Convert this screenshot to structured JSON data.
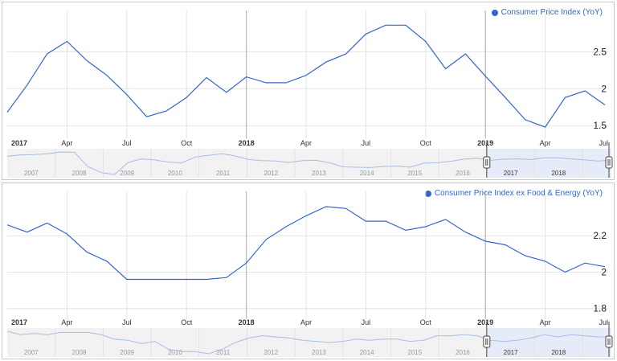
{
  "colors": {
    "line": "#3366cc",
    "grid": "#e3e3e3",
    "year_line": "#bbbbbb",
    "nav_bg": "#f2f2f2",
    "nav_selected": "#e6ecf7",
    "handle": "#444444"
  },
  "chart_data": [
    {
      "type": "line",
      "title": "",
      "series": [
        {
          "name": "Consumer Price Index (YoY)",
          "x": [
            "2017-01",
            "2017-02",
            "2017-03",
            "2017-04",
            "2017-05",
            "2017-06",
            "2017-07",
            "2017-08",
            "2017-09",
            "2017-10",
            "2017-11",
            "2017-12",
            "2018-01",
            "2018-02",
            "2018-03",
            "2018-04",
            "2018-05",
            "2018-06",
            "2018-07",
            "2018-08",
            "2018-09",
            "2018-10",
            "2018-11",
            "2018-12",
            "2019-01",
            "2019-02",
            "2019-03",
            "2019-04",
            "2019-05",
            "2019-06",
            "2019-07"
          ],
          "values": [
            1.68,
            2.05,
            2.47,
            2.64,
            2.38,
            2.18,
            1.92,
            1.62,
            1.7,
            1.88,
            2.15,
            1.95,
            2.16,
            2.08,
            2.08,
            2.18,
            2.36,
            2.47,
            2.74,
            2.86,
            2.86,
            2.64,
            2.27,
            2.47,
            2.17,
            1.88,
            1.58,
            1.48,
            1.88,
            1.97,
            1.78
          ]
        }
      ],
      "x_tick_labels": [
        "2017",
        "Apr",
        "Jul",
        "Oct",
        "2018",
        "Apr",
        "Jul",
        "Oct",
        "2019",
        "Apr",
        "Jul"
      ],
      "y_ticks": [
        "1.5",
        "2",
        "2.5"
      ],
      "ylim": [
        1.35,
        2.95
      ],
      "xlabel": "",
      "ylabel": "",
      "grid": true,
      "legend_position": "top-right",
      "navigator": {
        "years": [
          "2007",
          "2008",
          "2009",
          "2010",
          "2011",
          "2012",
          "2013",
          "2014",
          "2015",
          "2016",
          "2017",
          "2018"
        ],
        "values": [
          2.9,
          3.3,
          3.4,
          3.6,
          4.1,
          4.0,
          0.1,
          -1.6,
          -2.1,
          1.2,
          2.2,
          1.9,
          1.3,
          1.1,
          2.7,
          3.2,
          3.6,
          3.0,
          2.0,
          1.7,
          1.6,
          1.2,
          1.7,
          1.8,
          1.1,
          0.0,
          -0.1,
          -0.2,
          0.1,
          0.2,
          -0.1,
          1.0,
          1.1,
          1.5,
          2.1,
          2.4,
          1.8,
          2.1,
          2.2,
          2.0,
          2.5,
          2.5,
          2.2,
          1.9,
          1.6,
          1.8
        ],
        "selected_range": [
          "2017",
          "2019"
        ]
      }
    },
    {
      "type": "line",
      "title": "",
      "series": [
        {
          "name": "Consumer Price Index ex Food & Energy (YoY)",
          "x": [
            "2017-01",
            "2017-02",
            "2017-03",
            "2017-04",
            "2017-05",
            "2017-06",
            "2017-07",
            "2017-08",
            "2017-09",
            "2017-10",
            "2017-11",
            "2017-12",
            "2018-01",
            "2018-02",
            "2018-03",
            "2018-04",
            "2018-05",
            "2018-06",
            "2018-07",
            "2018-08",
            "2018-09",
            "2018-10",
            "2018-11",
            "2018-12",
            "2019-01",
            "2019-02",
            "2019-03",
            "2019-04",
            "2019-05",
            "2019-06",
            "2019-07"
          ],
          "values": [
            2.26,
            2.22,
            2.27,
            2.21,
            2.11,
            2.06,
            1.96,
            1.96,
            1.96,
            1.96,
            1.96,
            1.97,
            2.05,
            2.18,
            2.25,
            2.31,
            2.36,
            2.35,
            2.28,
            2.28,
            2.23,
            2.25,
            2.29,
            2.22,
            2.17,
            2.15,
            2.09,
            2.06,
            2.0,
            2.05,
            2.03
          ]
        }
      ],
      "x_tick_labels": [
        "2017",
        "Apr",
        "Jul",
        "Oct",
        "2018",
        "Apr",
        "Jul",
        "Oct",
        "2019",
        "Apr",
        "Jul"
      ],
      "y_ticks": [
        "1.8",
        "2",
        "2.2"
      ],
      "ylim": [
        1.75,
        2.4
      ],
      "xlabel": "",
      "ylabel": "",
      "grid": true,
      "legend_position": "top-right",
      "navigator": {
        "years": [
          "2007",
          "2008",
          "2009",
          "2010",
          "2011",
          "2012",
          "2013",
          "2014",
          "2015",
          "2016",
          "2017",
          "2018"
        ],
        "values": [
          2.6,
          2.3,
          2.4,
          2.3,
          2.5,
          2.5,
          2.5,
          2.3,
          1.9,
          1.8,
          1.5,
          1.7,
          1.0,
          0.8,
          0.8,
          0.6,
          1.0,
          1.6,
          2.0,
          2.2,
          2.1,
          2.0,
          1.8,
          1.7,
          1.6,
          1.7,
          1.9,
          1.8,
          1.9,
          1.9,
          1.7,
          1.8,
          2.2,
          2.2,
          2.3,
          2.2,
          1.8,
          1.7,
          1.8,
          2.0,
          2.3,
          2.1,
          2.3,
          2.2,
          2.1,
          2.1
        ],
        "selected_range": [
          "2017",
          "2019"
        ]
      }
    }
  ]
}
